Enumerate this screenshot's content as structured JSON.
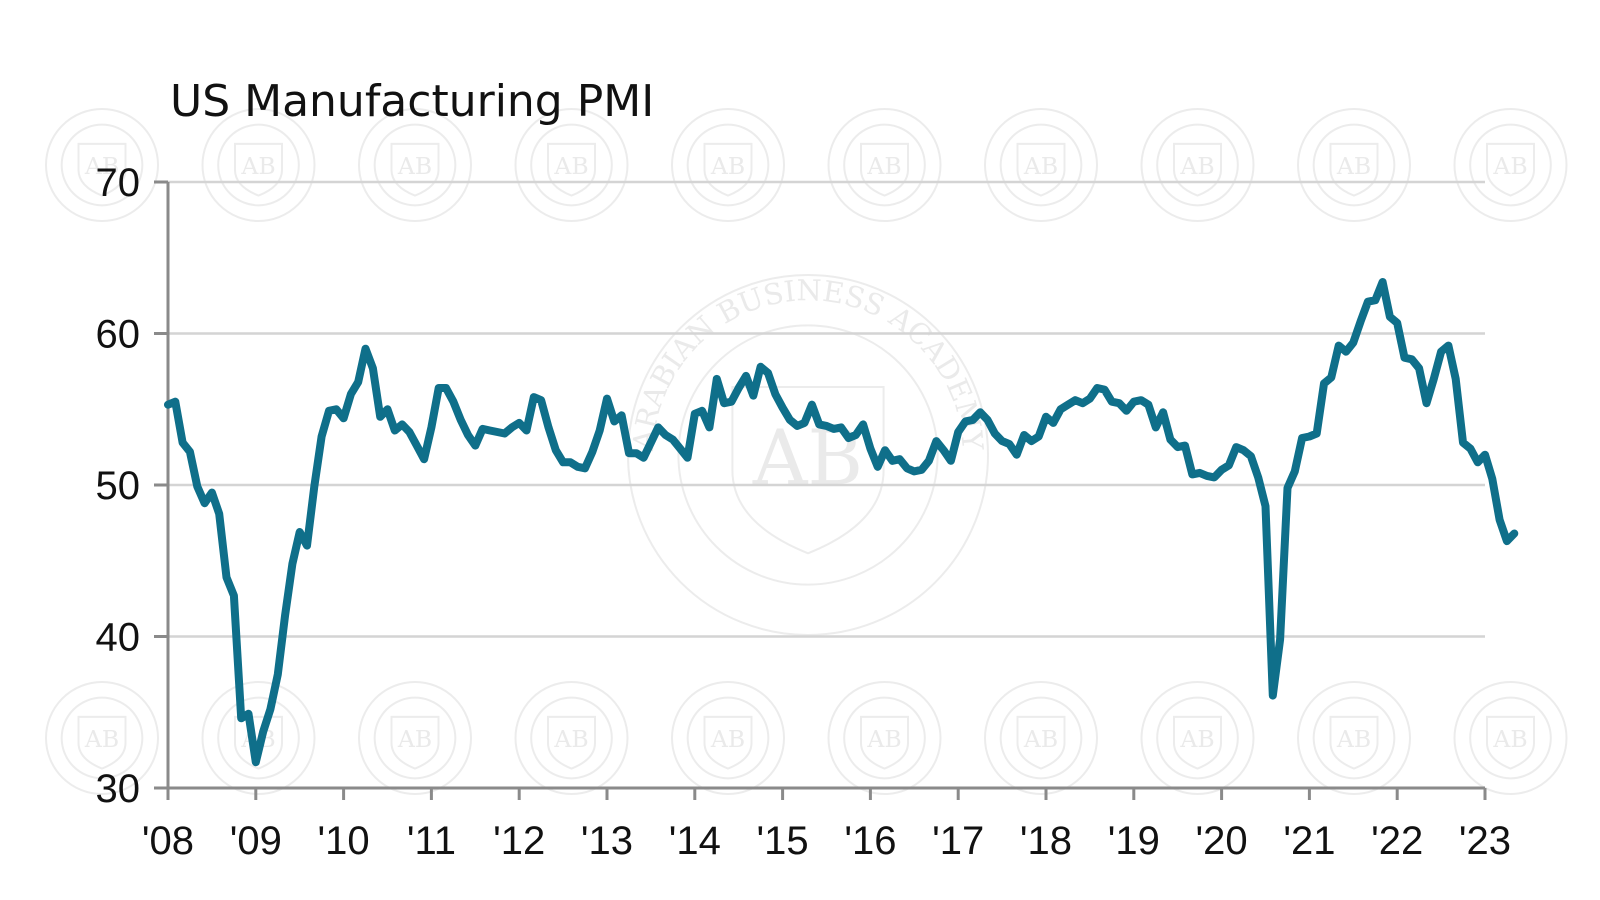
{
  "chart_data": {
    "type": "line",
    "title": "US Manufacturing PMI",
    "xlabel": "",
    "ylabel": "",
    "ylim": [
      30,
      70
    ],
    "yticks": [
      30,
      40,
      50,
      60,
      70
    ],
    "xlim": [
      "2008-01",
      "2023-01"
    ],
    "xtick_labels": [
      "'08",
      "'09",
      "'10",
      "'11",
      "'12",
      "'13",
      "'14",
      "'15",
      "'16",
      "'17",
      "'18",
      "'19",
      "'20",
      "'21",
      "'22",
      "'23"
    ],
    "grid": true,
    "legend": "none",
    "line_color": "#0f6f8a",
    "x_start": "2008-01",
    "x_frequency": "monthly",
    "series": [
      {
        "name": "US Manufacturing PMI",
        "values": [
          55.3,
          55.5,
          52.8,
          52.2,
          49.9,
          48.8,
          49.5,
          48.1,
          43.9,
          42.7,
          34.6,
          34.9,
          31.7,
          33.7,
          35.2,
          37.5,
          41.4,
          44.8,
          46.9,
          46.0,
          49.9,
          53.2,
          54.9,
          55.0,
          54.4,
          56.0,
          56.8,
          59.0,
          57.7,
          54.5,
          55.0,
          53.6,
          54.0,
          53.5,
          52.6,
          51.7,
          53.8,
          56.4,
          56.4,
          55.5,
          54.3,
          53.3,
          52.6,
          53.7,
          53.6,
          53.5,
          53.4,
          53.8,
          54.1,
          53.6,
          55.8,
          55.6,
          53.8,
          52.3,
          51.5,
          51.5,
          51.2,
          51.1,
          52.2,
          53.6,
          55.7,
          54.2,
          54.6,
          52.1,
          52.1,
          51.8,
          52.8,
          53.8,
          53.3,
          53.0,
          52.4,
          51.8,
          54.7,
          54.9,
          53.8,
          57.0,
          55.4,
          55.5,
          56.4,
          57.2,
          55.9,
          57.8,
          57.4,
          56.0,
          55.1,
          54.3,
          53.9,
          54.1,
          55.3,
          54.0,
          53.9,
          53.7,
          53.8,
          53.1,
          53.3,
          54.0,
          52.4,
          51.2,
          52.3,
          51.6,
          51.7,
          51.1,
          50.9,
          51.0,
          51.6,
          52.9,
          52.3,
          51.6,
          53.5,
          54.2,
          54.3,
          54.8,
          54.3,
          53.4,
          52.9,
          52.7,
          52.0,
          53.3,
          52.9,
          53.2,
          54.5,
          54.1,
          55.0,
          55.3,
          55.6,
          55.4,
          55.7,
          56.4,
          56.3,
          55.5,
          55.4,
          54.9,
          55.5,
          55.6,
          55.3,
          53.8,
          54.8,
          53.0,
          52.5,
          52.6,
          50.7,
          50.8,
          50.6,
          50.5,
          51.0,
          51.3,
          52.5,
          52.3,
          51.9,
          50.5,
          48.6,
          36.1,
          39.8,
          49.8,
          50.9,
          53.1,
          53.2,
          53.4,
          56.7,
          57.1,
          59.2,
          58.8,
          59.4,
          60.8,
          62.1,
          62.2,
          63.4,
          61.1,
          60.7,
          58.4,
          58.3,
          57.7,
          55.4,
          57.0,
          58.8,
          59.2,
          57.0,
          52.8,
          52.4,
          51.5,
          52.0,
          50.4,
          47.7,
          46.3,
          46.8
        ]
      }
    ]
  },
  "watermark": {
    "text_top": "ARABIAN BUSINESS ACADEMY",
    "monogram": "AB"
  }
}
